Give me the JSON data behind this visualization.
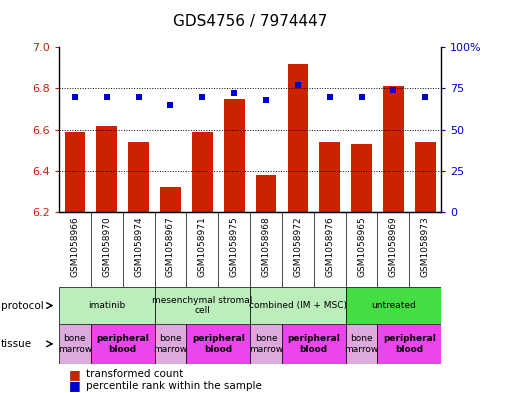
{
  "title": "GDS4756 / 7974447",
  "samples": [
    "GSM1058966",
    "GSM1058970",
    "GSM1058974",
    "GSM1058967",
    "GSM1058971",
    "GSM1058975",
    "GSM1058968",
    "GSM1058972",
    "GSM1058976",
    "GSM1058965",
    "GSM1058969",
    "GSM1058973"
  ],
  "bar_values": [
    6.59,
    6.62,
    6.54,
    6.32,
    6.59,
    6.75,
    6.38,
    6.92,
    6.54,
    6.53,
    6.81,
    6.54
  ],
  "dot_values": [
    70,
    70,
    70,
    65,
    70,
    72,
    68,
    77,
    70,
    70,
    74,
    70
  ],
  "ylim": [
    6.2,
    7.0
  ],
  "y2lim": [
    0,
    100
  ],
  "yticks": [
    6.2,
    6.4,
    6.6,
    6.8,
    7.0
  ],
  "y2ticks": [
    0,
    25,
    50,
    75,
    100
  ],
  "bar_color": "#cc2200",
  "dot_color": "#0000cc",
  "bar_baseline": 6.2,
  "prot_groups": [
    {
      "label": "imatinib",
      "start": 0,
      "end": 2,
      "color": "#bbeebb"
    },
    {
      "label": "mesenchymal stromal\ncell",
      "start": 3,
      "end": 5,
      "color": "#bbeebb"
    },
    {
      "label": "combined (IM + MSC)",
      "start": 6,
      "end": 8,
      "color": "#bbeebb"
    },
    {
      "label": "untreated",
      "start": 9,
      "end": 11,
      "color": "#44dd44"
    }
  ],
  "tiss_groups": [
    {
      "label": "bone\nmarrow",
      "start": 0,
      "end": 0,
      "color": "#ddaadd",
      "bold": false
    },
    {
      "label": "peripheral\nblood",
      "start": 1,
      "end": 2,
      "color": "#ee44ee",
      "bold": true
    },
    {
      "label": "bone\nmarrow",
      "start": 3,
      "end": 3,
      "color": "#ddaadd",
      "bold": false
    },
    {
      "label": "peripheral\nblood",
      "start": 4,
      "end": 5,
      "color": "#ee44ee",
      "bold": true
    },
    {
      "label": "bone\nmarrow",
      "start": 6,
      "end": 6,
      "color": "#ddaadd",
      "bold": false
    },
    {
      "label": "peripheral\nblood",
      "start": 7,
      "end": 8,
      "color": "#ee44ee",
      "bold": true
    },
    {
      "label": "bone\nmarrow",
      "start": 9,
      "end": 9,
      "color": "#ddaadd",
      "bold": false
    },
    {
      "label": "peripheral\nblood",
      "start": 10,
      "end": 11,
      "color": "#ee44ee",
      "bold": true
    }
  ],
  "legend_bar_label": "transformed count",
  "legend_dot_label": "percentile rank within the sample",
  "protocol_label": "protocol",
  "tissue_label": "tissue",
  "bg_color": "#ffffff",
  "ylabel_color": "#cc2200",
  "y2label_color": "#0000cc",
  "xtick_bg": "#cccccc",
  "title_fontsize": 11,
  "bar_fontsize": 6.5,
  "ytick_fontsize": 8,
  "legend_fontsize": 7.5
}
